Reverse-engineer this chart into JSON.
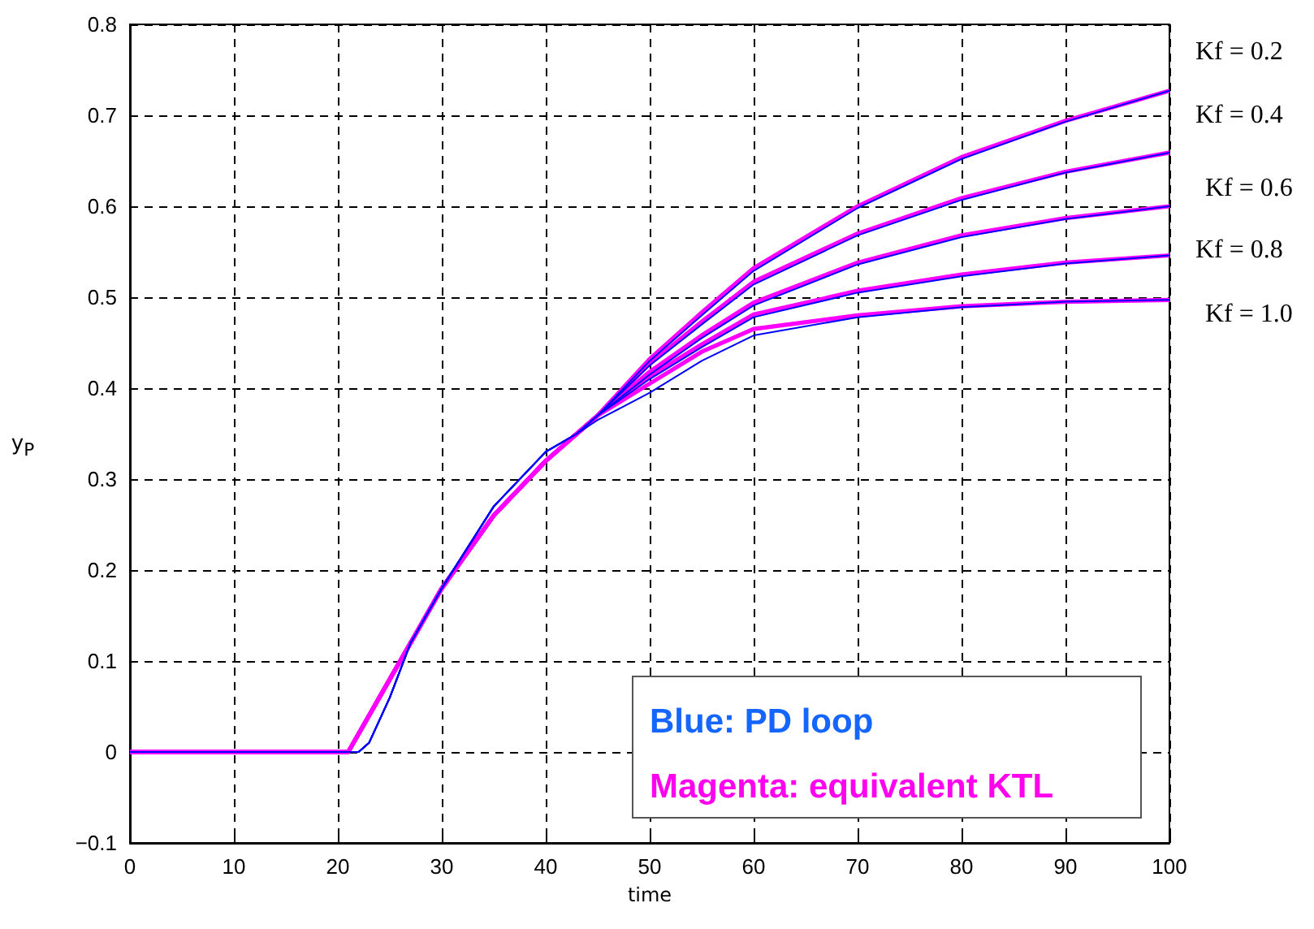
{
  "chart_data": {
    "type": "line",
    "xlabel": "time",
    "ylabel": "y$_{P}$",
    "xlim": [
      0,
      100
    ],
    "xticks": [
      0,
      10,
      20,
      30,
      40,
      50,
      60,
      70,
      80,
      90,
      100
    ],
    "ylim": [
      -0.1,
      0.8
    ],
    "yticks": [
      {
        "value": -0.1,
        "label": "−0.1"
      },
      0,
      0.1,
      0.2,
      0.3,
      0.4,
      0.5,
      0.6,
      0.7,
      0.8
    ],
    "grid": true,
    "legend": false,
    "marker": "none",
    "line_style": "solid",
    "annotations": [
      "Blue: PD loop",
      "Magenta: equivalent KTL"
    ],
    "series": [
      {
        "color": "#ff00ff",
        "x": [
          0,
          21,
          25,
          27,
          30,
          35,
          40,
          43,
          45,
          50,
          55,
          60,
          70,
          80,
          90,
          100
        ],
        "values": [
          0,
          0,
          0.08,
          0.12,
          0.18,
          0.26,
          0.32,
          0.35,
          0.37,
          0.432,
          0.483,
          0.532,
          0.6,
          0.654,
          0.694,
          0.727
        ]
      },
      {
        "color": "#ff00ff",
        "x": [
          0,
          21,
          25,
          27,
          30,
          35,
          40,
          43,
          45,
          50,
          55,
          60,
          70,
          80,
          90,
          100
        ],
        "values": [
          0,
          0,
          0.08,
          0.12,
          0.18,
          0.26,
          0.32,
          0.35,
          0.37,
          0.427,
          0.473,
          0.517,
          0.57,
          0.609,
          0.638,
          0.659
        ]
      },
      {
        "color": "#ff00ff",
        "x": [
          0,
          21,
          25,
          27,
          30,
          35,
          40,
          43,
          45,
          50,
          55,
          60,
          70,
          80,
          90,
          100
        ],
        "values": [
          0,
          0,
          0.08,
          0.12,
          0.18,
          0.26,
          0.32,
          0.35,
          0.37,
          0.418,
          0.458,
          0.494,
          0.538,
          0.568,
          0.587,
          0.6
        ]
      },
      {
        "color": "#ff00ff",
        "x": [
          0,
          21,
          25,
          27,
          30,
          35,
          40,
          43,
          45,
          50,
          55,
          60,
          70,
          80,
          90,
          100
        ],
        "values": [
          0,
          0,
          0.08,
          0.12,
          0.18,
          0.26,
          0.32,
          0.35,
          0.37,
          0.413,
          0.448,
          0.481,
          0.507,
          0.525,
          0.538,
          0.546
        ]
      },
      {
        "color": "#ff00ff",
        "x": [
          0,
          21,
          25,
          27,
          30,
          35,
          40,
          43,
          45,
          50,
          55,
          60,
          70,
          80,
          90,
          100
        ],
        "values": [
          0,
          0,
          0.08,
          0.12,
          0.18,
          0.26,
          0.32,
          0.35,
          0.37,
          0.405,
          0.44,
          0.465,
          0.48,
          0.49,
          0.495,
          0.497
        ]
      },
      {
        "name": "Kf = 0.2",
        "color": "#0000ff",
        "x": [
          0,
          22,
          23,
          25,
          27,
          30,
          35,
          40,
          43,
          45,
          50,
          55,
          60,
          70,
          80,
          90,
          100
        ],
        "values": [
          0,
          0,
          0.01,
          0.06,
          0.12,
          0.18,
          0.27,
          0.33,
          0.35,
          0.37,
          0.43,
          0.48,
          0.529,
          0.598,
          0.652,
          0.693,
          0.727
        ]
      },
      {
        "name": "Kf = 0.4",
        "color": "#0000ff",
        "x": [
          0,
          22,
          23,
          25,
          27,
          30,
          35,
          40,
          43,
          45,
          50,
          55,
          60,
          70,
          80,
          90,
          100
        ],
        "values": [
          0,
          0,
          0.01,
          0.06,
          0.12,
          0.18,
          0.27,
          0.33,
          0.35,
          0.37,
          0.425,
          0.47,
          0.514,
          0.568,
          0.607,
          0.637,
          0.659
        ]
      },
      {
        "name": "Kf = 0.6",
        "color": "#0000ff",
        "x": [
          0,
          22,
          23,
          25,
          27,
          30,
          35,
          40,
          43,
          45,
          50,
          55,
          60,
          70,
          80,
          90,
          100
        ],
        "values": [
          0,
          0,
          0.01,
          0.06,
          0.12,
          0.18,
          0.27,
          0.33,
          0.35,
          0.37,
          0.415,
          0.455,
          0.491,
          0.536,
          0.566,
          0.586,
          0.6
        ]
      },
      {
        "name": "Kf = 0.8",
        "color": "#0000ff",
        "x": [
          0,
          22,
          23,
          25,
          27,
          30,
          35,
          40,
          43,
          45,
          50,
          55,
          60,
          70,
          80,
          90,
          100
        ],
        "values": [
          0,
          0,
          0.01,
          0.06,
          0.12,
          0.18,
          0.27,
          0.33,
          0.35,
          0.37,
          0.41,
          0.445,
          0.478,
          0.505,
          0.523,
          0.537,
          0.546
        ]
      },
      {
        "name": "Kf = 1.0",
        "color": "#0000ff",
        "x": [
          0,
          22,
          23,
          25,
          27,
          30,
          35,
          40,
          43,
          45,
          50,
          55,
          60,
          70,
          80,
          90,
          100
        ],
        "values": [
          0,
          0,
          0.01,
          0.06,
          0.12,
          0.18,
          0.27,
          0.33,
          0.35,
          0.365,
          0.395,
          0.43,
          0.458,
          0.478,
          0.489,
          0.495,
          0.497
        ]
      }
    ]
  }
}
